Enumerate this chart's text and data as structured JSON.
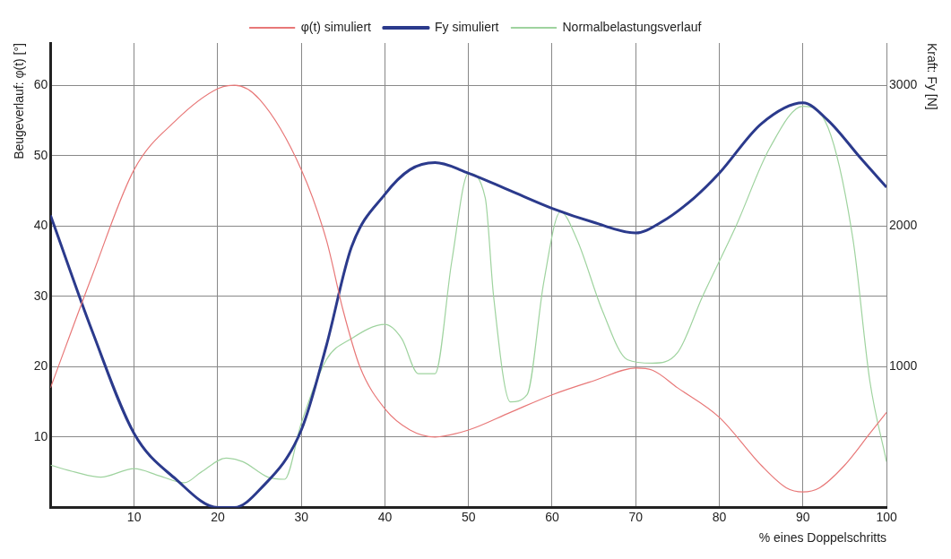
{
  "chart_data": {
    "type": "line",
    "xlabel": "% eines Doppelschritts",
    "ylabel": "Beugeverlauf: φ(t) [°]",
    "y2label": "Kraft: Fy [N]",
    "xlim": [
      0,
      100
    ],
    "xticks": [
      10,
      20,
      30,
      40,
      50,
      60,
      70,
      80,
      90,
      100
    ],
    "ylim": [
      0,
      66
    ],
    "yticks": [
      10,
      20,
      30,
      40,
      50,
      60
    ],
    "y2lim": [
      0,
      3300
    ],
    "y2ticks": [
      1000,
      2000,
      3000
    ],
    "grid": true,
    "legend": "top",
    "marker": "none",
    "line_style": "solid",
    "series": [
      {
        "name": "φ(t) simuliert",
        "color": "#e87878",
        "x": [
          0,
          5,
          10,
          15,
          20,
          22,
          25,
          30,
          33,
          35,
          37,
          40,
          43,
          46,
          50,
          55,
          60,
          65,
          70,
          72,
          75,
          80,
          85,
          88,
          90,
          92,
          95,
          98,
          100
        ],
        "values": [
          17,
          33,
          48,
          55,
          59.5,
          60,
          58,
          48,
          38,
          28,
          20,
          14,
          11,
          10,
          11,
          13.5,
          16,
          18,
          19.8,
          19.5,
          17,
          12.8,
          6,
          2.8,
          2.2,
          2.8,
          6,
          10.5,
          13.5
        ]
      },
      {
        "name": "Fy simuliert",
        "color": "#2b3a8c",
        "axis": "y2",
        "x": [
          0,
          5,
          10,
          15,
          20,
          22,
          25,
          30,
          33,
          36,
          40,
          43,
          46,
          50,
          55,
          60,
          65,
          70,
          73,
          77,
          80,
          85,
          90,
          93,
          97,
          100
        ],
        "values": [
          2075,
          1250,
          525,
          200,
          0,
          0,
          125,
          550,
          1150,
          1850,
          2225,
          2400,
          2450,
          2375,
          2250,
          2125,
          2025,
          1950,
          2025,
          2200,
          2375,
          2725,
          2875,
          2750,
          2475,
          2275
        ]
      },
      {
        "name": "Normalbelastungsverlauf",
        "color": "#9fd39f",
        "axis": "y2",
        "x": [
          0,
          3,
          6,
          10,
          13,
          16,
          18,
          21,
          23,
          26,
          28,
          30,
          33,
          36,
          40,
          42,
          44,
          46,
          48,
          50,
          52,
          53,
          55,
          57,
          59,
          61,
          63,
          66,
          69,
          72,
          75,
          78,
          82,
          86,
          90,
          93,
          96,
          98,
          100
        ],
        "values": [
          300,
          250,
          215,
          275,
          225,
          175,
          250,
          350,
          325,
          215,
          200,
          600,
          1050,
          1200,
          1300,
          1200,
          950,
          950,
          1750,
          2375,
          2200,
          1500,
          750,
          800,
          1600,
          2100,
          1900,
          1400,
          1050,
          1025,
          1100,
          1500,
          2000,
          2550,
          2850,
          2700,
          1900,
          900,
          325
        ]
      }
    ]
  }
}
